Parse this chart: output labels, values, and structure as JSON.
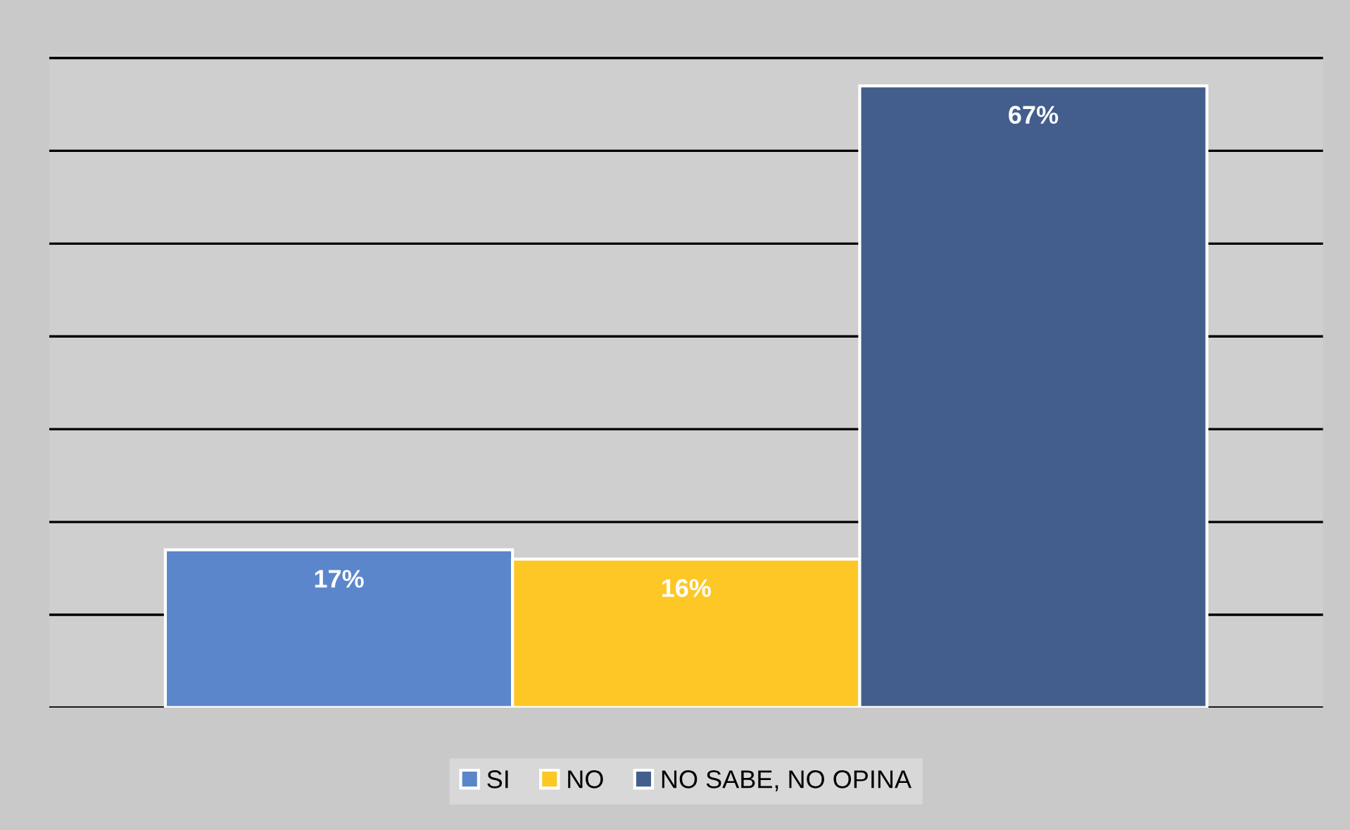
{
  "chart_data": {
    "type": "bar",
    "categories": [
      null
    ],
    "series": [
      {
        "name": "SI",
        "color": "#5b86cc",
        "values": [
          17
        ],
        "value_labels": [
          "17%"
        ]
      },
      {
        "name": "NO",
        "color": "#fdc826",
        "values": [
          16
        ],
        "value_labels": [
          "16%"
        ]
      },
      {
        "name": "NO SABE, NO OPINA",
        "color": "#435e8c",
        "values": [
          67
        ],
        "value_labels": [
          "67%"
        ]
      }
    ],
    "grid": "y",
    "legend": "bottom",
    "tick_labels": false
  }
}
